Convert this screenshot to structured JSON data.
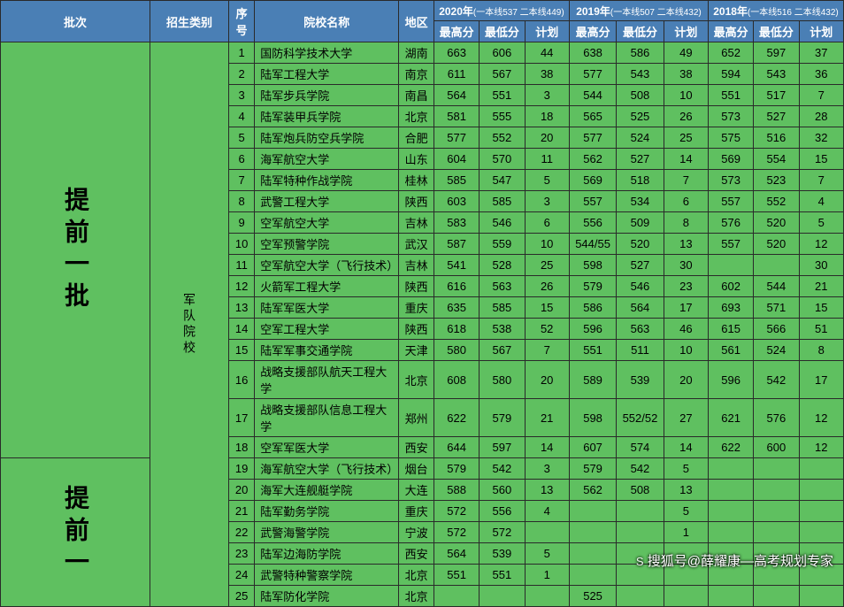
{
  "headers": {
    "batch": "批次",
    "category": "招生类别",
    "seq": "序号",
    "school": "院校名称",
    "region": "地区",
    "years": [
      {
        "year": "2020年",
        "note": "(一本线537 二本线449)"
      },
      {
        "year": "2019年",
        "note": "(一本线507 二本线432)"
      },
      {
        "year": "2018年",
        "note": "(一本线516 二本线432)"
      }
    ],
    "sub": {
      "max": "最高分",
      "min": "最低分",
      "plan": "计划"
    }
  },
  "batch_label_1": "提前一批",
  "batch_label_2": "提前一",
  "category_label": "军队院校",
  "rows": [
    {
      "seq": "1",
      "name": "国防科学技术大学",
      "region": "湖南",
      "y20": [
        "663",
        "606",
        "44"
      ],
      "y19": [
        "638",
        "586",
        "49"
      ],
      "y18": [
        "652",
        "597",
        "37"
      ]
    },
    {
      "seq": "2",
      "name": "陆军工程大学",
      "region": "南京",
      "y20": [
        "611",
        "567",
        "38"
      ],
      "y19": [
        "577",
        "543",
        "38"
      ],
      "y18": [
        "594",
        "543",
        "36"
      ]
    },
    {
      "seq": "3",
      "name": "陆军步兵学院",
      "region": "南昌",
      "y20": [
        "564",
        "551",
        "3"
      ],
      "y19": [
        "544",
        "508",
        "10"
      ],
      "y18": [
        "551",
        "517",
        "7"
      ]
    },
    {
      "seq": "4",
      "name": "陆军装甲兵学院",
      "region": "北京",
      "y20": [
        "581",
        "555",
        "18"
      ],
      "y19": [
        "565",
        "525",
        "26"
      ],
      "y18": [
        "573",
        "527",
        "28"
      ]
    },
    {
      "seq": "5",
      "name": "陆军炮兵防空兵学院",
      "region": "合肥",
      "y20": [
        "577",
        "552",
        "20"
      ],
      "y19": [
        "577",
        "524",
        "25"
      ],
      "y18": [
        "575",
        "516",
        "32"
      ]
    },
    {
      "seq": "6",
      "name": "海军航空大学",
      "region": "山东",
      "y20": [
        "604",
        "570",
        "11"
      ],
      "y19": [
        "562",
        "527",
        "14"
      ],
      "y18": [
        "569",
        "554",
        "15"
      ]
    },
    {
      "seq": "7",
      "name": "陆军特种作战学院",
      "region": "桂林",
      "y20": [
        "585",
        "547",
        "5"
      ],
      "y19": [
        "569",
        "518",
        "7"
      ],
      "y18": [
        "573",
        "523",
        "7"
      ]
    },
    {
      "seq": "8",
      "name": "武警工程大学",
      "region": "陕西",
      "y20": [
        "603",
        "585",
        "3"
      ],
      "y19": [
        "557",
        "534",
        "6"
      ],
      "y18": [
        "557",
        "552",
        "4"
      ]
    },
    {
      "seq": "9",
      "name": "空军航空大学",
      "region": "吉林",
      "y20": [
        "583",
        "546",
        "6"
      ],
      "y19": [
        "556",
        "509",
        "8"
      ],
      "y18": [
        "576",
        "520",
        "5"
      ]
    },
    {
      "seq": "10",
      "name": "空军预警学院",
      "region": "武汉",
      "y20": [
        "587",
        "559",
        "10"
      ],
      "y19": [
        "544/55",
        "520",
        "13"
      ],
      "y18": [
        "557",
        "520",
        "12"
      ]
    },
    {
      "seq": "11",
      "name": "空军航空大学（飞行技术）",
      "region": "吉林",
      "y20": [
        "541",
        "528",
        "25"
      ],
      "y19": [
        "598",
        "527",
        "30"
      ],
      "y18": [
        "",
        "",
        "30"
      ]
    },
    {
      "seq": "12",
      "name": "火箭军工程大学",
      "region": "陕西",
      "y20": [
        "616",
        "563",
        "26"
      ],
      "y19": [
        "579",
        "546",
        "23"
      ],
      "y18": [
        "602",
        "544",
        "21"
      ]
    },
    {
      "seq": "13",
      "name": "陆军军医大学",
      "region": "重庆",
      "y20": [
        "635",
        "585",
        "15"
      ],
      "y19": [
        "586",
        "564",
        "17"
      ],
      "y18": [
        "693",
        "571",
        "15"
      ]
    },
    {
      "seq": "14",
      "name": "空军工程大学",
      "region": "陕西",
      "y20": [
        "618",
        "538",
        "52"
      ],
      "y19": [
        "596",
        "563",
        "46"
      ],
      "y18": [
        "615",
        "566",
        "51"
      ]
    },
    {
      "seq": "15",
      "name": "陆军军事交通学院",
      "region": "天津",
      "y20": [
        "580",
        "567",
        "7"
      ],
      "y19": [
        "551",
        "511",
        "10"
      ],
      "y18": [
        "561",
        "524",
        "8"
      ]
    },
    {
      "seq": "16",
      "name": "战略支援部队航天工程大学",
      "region": "北京",
      "y20": [
        "608",
        "580",
        "20"
      ],
      "y19": [
        "589",
        "539",
        "20"
      ],
      "y18": [
        "596",
        "542",
        "17"
      ]
    },
    {
      "seq": "17",
      "name": "战略支援部队信息工程大学",
      "region": "郑州",
      "y20": [
        "622",
        "579",
        "21"
      ],
      "y19": [
        "598",
        "552/52",
        "27"
      ],
      "y18": [
        "621",
        "576",
        "12"
      ]
    },
    {
      "seq": "18",
      "name": "空军军医大学",
      "region": "西安",
      "y20": [
        "644",
        "597",
        "14"
      ],
      "y19": [
        "607",
        "574",
        "14"
      ],
      "y18": [
        "622",
        "600",
        "12"
      ]
    },
    {
      "seq": "19",
      "name": "海军航空大学（飞行技术）",
      "region": "烟台",
      "y20": [
        "579",
        "542",
        "3"
      ],
      "y19": [
        "579",
        "542",
        "5"
      ],
      "y18": [
        "",
        "",
        ""
      ]
    },
    {
      "seq": "20",
      "name": "海军大连舰艇学院",
      "region": "大连",
      "y20": [
        "588",
        "560",
        "13"
      ],
      "y19": [
        "562",
        "508",
        "13"
      ],
      "y18": [
        "",
        "",
        ""
      ]
    },
    {
      "seq": "21",
      "name": "陆军勤务学院",
      "region": "重庆",
      "y20": [
        "572",
        "556",
        "4"
      ],
      "y19": [
        "",
        "",
        "5"
      ],
      "y18": [
        "",
        "",
        ""
      ]
    },
    {
      "seq": "22",
      "name": "武警海警学院",
      "region": "宁波",
      "y20": [
        "572",
        "572",
        ""
      ],
      "y19": [
        "",
        "",
        "1"
      ],
      "y18": [
        "",
        "",
        ""
      ]
    },
    {
      "seq": "23",
      "name": "陆军边海防学院",
      "region": "西安",
      "y20": [
        "564",
        "539",
        "5"
      ],
      "y19": [
        "",
        "",
        ""
      ],
      "y18": [
        "",
        "",
        ""
      ]
    },
    {
      "seq": "24",
      "name": "武警特种警察学院",
      "region": "北京",
      "y20": [
        "551",
        "551",
        "1"
      ],
      "y19": [
        "",
        "",
        ""
      ],
      "y18": [
        "",
        "",
        ""
      ]
    },
    {
      "seq": "25",
      "name": "陆军防化学院",
      "region": "北京",
      "y20": [
        "",
        "",
        ""
      ],
      "y19": [
        "525",
        "",
        ""
      ],
      "y18": [
        "",
        "",
        ""
      ]
    }
  ],
  "watermark": "搜狐号@薛耀康—高考规划专家",
  "colors": {
    "header_bg": "#4a7fb5",
    "body_bg": "#5fc060",
    "border": "#2a2a2a",
    "header_text": "#ffffff"
  }
}
